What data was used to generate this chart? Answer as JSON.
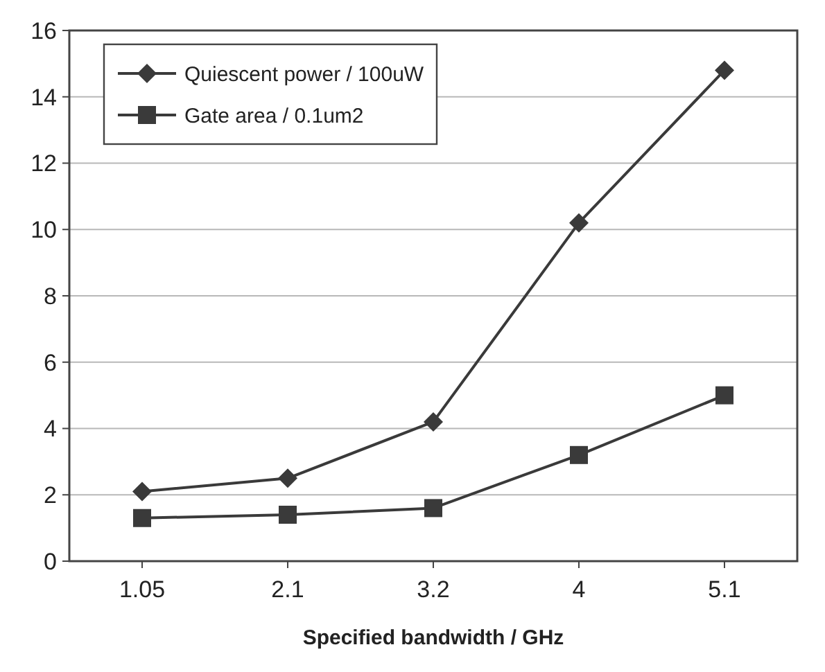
{
  "chart_data": {
    "type": "line",
    "xlabel": "Specified bandwidth / GHz",
    "categories": [
      "1.05",
      "2.1",
      "3.2",
      "4",
      "5.1"
    ],
    "series": [
      {
        "name": "Quiescent power / 100uW",
        "color": "#3a3a3a",
        "marker": "diamond",
        "values": [
          2.1,
          2.5,
          4.2,
          10.2,
          14.8
        ]
      },
      {
        "name": "Gate area / 0.1um2",
        "color": "#3a3a3a",
        "marker": "square",
        "values": [
          1.3,
          1.4,
          1.6,
          3.2,
          5.0
        ]
      }
    ],
    "ylim": [
      0,
      16
    ],
    "yticks": [
      0,
      2,
      4,
      6,
      8,
      10,
      12,
      14,
      16
    ],
    "grid": "y",
    "legend": "top left"
  }
}
